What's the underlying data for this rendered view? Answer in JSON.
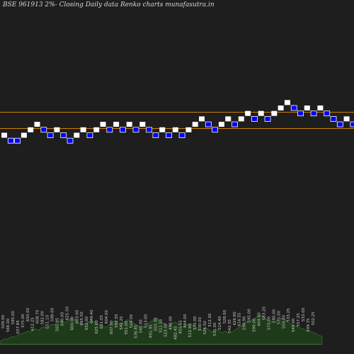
{
  "chart_data": {
    "type": "renko",
    "title": "BSE 961913 2%- Closing Daily data Renko charts munafasutra.in",
    "colors": {
      "background": "#1e1e1e",
      "up_brick": "#ffffff",
      "down_brick": "#0000ff",
      "reference_line": "#d08000",
      "volume_fill": "#1f3a1a",
      "volume_line": "#2e6a28",
      "label_text": "#cccccc"
    },
    "bricks": [
      {
        "dir": "up",
        "level": 0
      },
      {
        "dir": "down",
        "level": -1
      },
      {
        "dir": "down",
        "level": -1
      },
      {
        "dir": "up",
        "level": 0
      },
      {
        "dir": "up",
        "level": 1
      },
      {
        "dir": "up",
        "level": 2
      },
      {
        "dir": "down",
        "level": 1
      },
      {
        "dir": "down",
        "level": 0
      },
      {
        "dir": "up",
        "level": 1
      },
      {
        "dir": "down",
        "level": 0
      },
      {
        "dir": "down",
        "level": -1
      },
      {
        "dir": "up",
        "level": 0
      },
      {
        "dir": "up",
        "level": 1
      },
      {
        "dir": "down",
        "level": 0
      },
      {
        "dir": "up",
        "level": 1
      },
      {
        "dir": "up",
        "level": 2
      },
      {
        "dir": "down",
        "level": 1
      },
      {
        "dir": "up",
        "level": 2
      },
      {
        "dir": "down",
        "level": 1
      },
      {
        "dir": "up",
        "level": 2
      },
      {
        "dir": "down",
        "level": 1
      },
      {
        "dir": "up",
        "level": 2
      },
      {
        "dir": "down",
        "level": 1
      },
      {
        "dir": "down",
        "level": 0
      },
      {
        "dir": "up",
        "level": 1
      },
      {
        "dir": "down",
        "level": 0
      },
      {
        "dir": "up",
        "level": 1
      },
      {
        "dir": "down",
        "level": 0
      },
      {
        "dir": "up",
        "level": 1
      },
      {
        "dir": "up",
        "level": 2
      },
      {
        "dir": "up",
        "level": 3
      },
      {
        "dir": "down",
        "level": 2
      },
      {
        "dir": "down",
        "level": 1
      },
      {
        "dir": "up",
        "level": 2
      },
      {
        "dir": "up",
        "level": 3
      },
      {
        "dir": "down",
        "level": 2
      },
      {
        "dir": "up",
        "level": 3
      },
      {
        "dir": "up",
        "level": 4
      },
      {
        "dir": "down",
        "level": 3
      },
      {
        "dir": "up",
        "level": 4
      },
      {
        "dir": "down",
        "level": 3
      },
      {
        "dir": "up",
        "level": 4
      },
      {
        "dir": "up",
        "level": 5
      },
      {
        "dir": "up",
        "level": 6
      },
      {
        "dir": "down",
        "level": 5
      },
      {
        "dir": "down",
        "level": 4
      },
      {
        "dir": "up",
        "level": 5
      },
      {
        "dir": "down",
        "level": 4
      },
      {
        "dir": "up",
        "level": 5
      },
      {
        "dir": "down",
        "level": 4
      },
      {
        "dir": "down",
        "level": 3
      },
      {
        "dir": "down",
        "level": 2
      },
      {
        "dir": "up",
        "level": 3
      },
      {
        "dir": "down",
        "level": 2
      },
      {
        "dir": "down",
        "level": 1
      },
      {
        "dir": "down",
        "level": 0
      },
      {
        "dir": "up",
        "level": 1
      },
      {
        "dir": "down",
        "level": 0
      }
    ],
    "reference_lines": [
      {
        "level": 4
      },
      {
        "level": 1
      }
    ],
    "volume_labels": [
      "509.00",
      "566.00",
      "585.00",
      "557.85",
      "575.00",
      "650.00",
      "612.25",
      "608.70",
      "582.00",
      "551.10",
      "598.00",
      "565.95",
      "640.00",
      "625.50",
      "600.00",
      "683.00",
      "665.50",
      "652.00",
      "649.40",
      "625.00",
      "621.05",
      "604.00",
      "607.00",
      "582.50",
      "542.25",
      "551.00",
      "524.00",
      "536.85",
      "545.00",
      "513.00",
      "491.95",
      "503.30",
      "511.55",
      "523.50",
      "496.00",
      "482.45",
      "455.65",
      "464.00",
      "512.90",
      "535.00",
      "530.00",
      "526.50",
      "512.00",
      "531.00",
      "514.40",
      "528.00",
      "542.35",
      "626.80",
      "616.55",
      "594.90",
      "595.00",
      "590.00",
      "604.00",
      "583.20",
      "573.00",
      "580.00",
      "575.00",
      "554.00",
      "533.25",
      "549.00",
      "557.25",
      "533.00",
      "509.75",
      "502.25"
    ],
    "volume_profile": [
      3,
      5,
      7,
      6,
      8,
      9,
      10,
      9,
      11,
      14,
      13,
      15,
      16,
      17,
      15,
      18,
      20,
      19,
      18,
      21,
      23,
      22,
      20,
      24,
      26,
      25,
      27,
      29,
      31,
      30,
      28,
      30,
      32,
      34,
      33,
      31,
      29,
      27,
      26,
      25,
      27,
      29,
      31,
      30,
      28,
      26,
      25,
      24,
      23,
      22,
      24,
      26,
      28,
      30,
      29,
      27,
      26,
      28,
      30,
      32,
      31,
      29,
      27,
      25,
      24,
      23,
      22,
      24,
      26,
      28,
      30,
      32,
      34,
      33,
      31,
      29,
      27,
      25,
      24,
      26,
      28,
      29,
      27,
      25,
      23,
      22,
      24,
      26,
      27,
      25,
      23,
      21,
      20,
      18,
      19,
      21,
      20,
      18,
      16,
      17,
      19,
      18,
      16,
      15,
      17,
      16,
      14,
      15,
      17,
      19,
      21,
      23,
      25,
      27,
      29,
      28,
      30,
      32,
      34,
      36,
      38,
      37,
      35,
      33,
      31,
      30,
      29,
      28,
      30,
      32,
      34,
      33,
      31,
      29,
      27,
      26,
      24,
      23,
      22,
      21,
      20,
      19,
      18,
      17,
      16,
      15,
      14,
      12,
      11,
      10
    ]
  }
}
